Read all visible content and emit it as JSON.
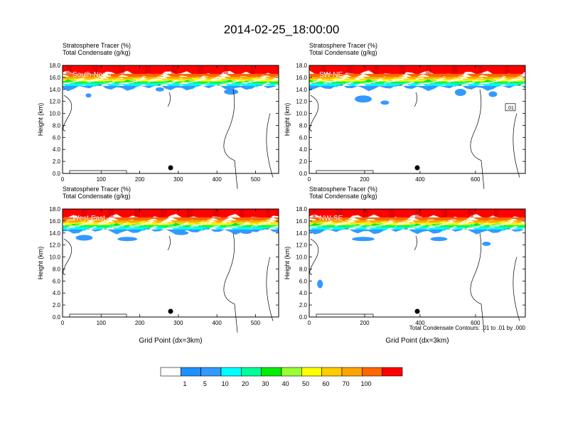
{
  "title": "2014-02-25_18:00:00",
  "panel_header": {
    "line1": "Stratosphere Tracer   (%)",
    "line2": "Total Condensate   (g/kg)"
  },
  "ylabel": "Height (km)",
  "xlabel": "Grid Point (dx=3km)",
  "contour_note": "Total Condensate Contours: .01 to .01 by .000",
  "yticks": [
    "0.0",
    "2.0",
    "4.0",
    "6.0",
    "8.0",
    "10.0",
    "12.0",
    "14.0",
    "16.0",
    "18.0"
  ],
  "colorbar": {
    "colors": [
      "#ffffff",
      "#1e90ff",
      "#3399ff",
      "#00ffff",
      "#00ff99",
      "#00ee00",
      "#99ff33",
      "#ffff00",
      "#ffcc00",
      "#ffa500",
      "#ff6600",
      "#ff0000"
    ],
    "labels": [
      "1",
      "5",
      "10",
      "20",
      "30",
      "40",
      "50",
      "60",
      "70",
      "100"
    ]
  },
  "panels": [
    {
      "id": "south-north",
      "tag": "South-North",
      "xticks": [
        "0",
        "100",
        "200",
        "300",
        "400",
        "500"
      ],
      "marker": "dot"
    },
    {
      "id": "sw-ne",
      "tag": "SW-NE",
      "xticks": [
        "0",
        "200",
        "400",
        "600"
      ],
      "marker": "dot",
      "contour_label": ".01"
    },
    {
      "id": "west-east",
      "tag": "West-East",
      "xticks": [
        "0",
        "100",
        "200",
        "300",
        "400",
        "500"
      ],
      "marker": "dot"
    },
    {
      "id": "nw-se",
      "tag": "NW-SE",
      "xticks": [
        "0",
        "200",
        "400",
        "600"
      ],
      "marker": "dot"
    }
  ],
  "chart_data": [
    {
      "type": "heatmap",
      "title": "South-North",
      "ylabel": "Height (km)",
      "ylim": [
        0,
        18
      ],
      "xlim": [
        0,
        560
      ],
      "series": [
        {
          "name": "Stratosphere Tracer (%)"
        },
        {
          "name": "Total Condensate (g/kg)"
        }
      ],
      "marker_x": 280
    },
    {
      "type": "heatmap",
      "title": "SW-NE",
      "ylabel": "Height (km)",
      "ylim": [
        0,
        18
      ],
      "xlim": [
        0,
        780
      ],
      "series": [
        {
          "name": "Stratosphere Tracer (%)"
        },
        {
          "name": "Total Condensate (g/kg)"
        }
      ],
      "marker_x": 390
    },
    {
      "type": "heatmap",
      "title": "West-East",
      "ylabel": "Height (km)",
      "xlabel": "Grid Point (dx=3km)",
      "ylim": [
        0,
        18
      ],
      "xlim": [
        0,
        560
      ],
      "series": [
        {
          "name": "Stratosphere Tracer (%)"
        },
        {
          "name": "Total Condensate (g/kg)"
        }
      ],
      "marker_x": 280
    },
    {
      "type": "heatmap",
      "title": "NW-SE",
      "ylabel": "Height (km)",
      "xlabel": "Grid Point (dx=3km)",
      "ylim": [
        0,
        18
      ],
      "xlim": [
        0,
        780
      ],
      "series": [
        {
          "name": "Stratosphere Tracer (%)"
        },
        {
          "name": "Total Condensate (g/kg)"
        }
      ],
      "marker_x": 390
    }
  ]
}
